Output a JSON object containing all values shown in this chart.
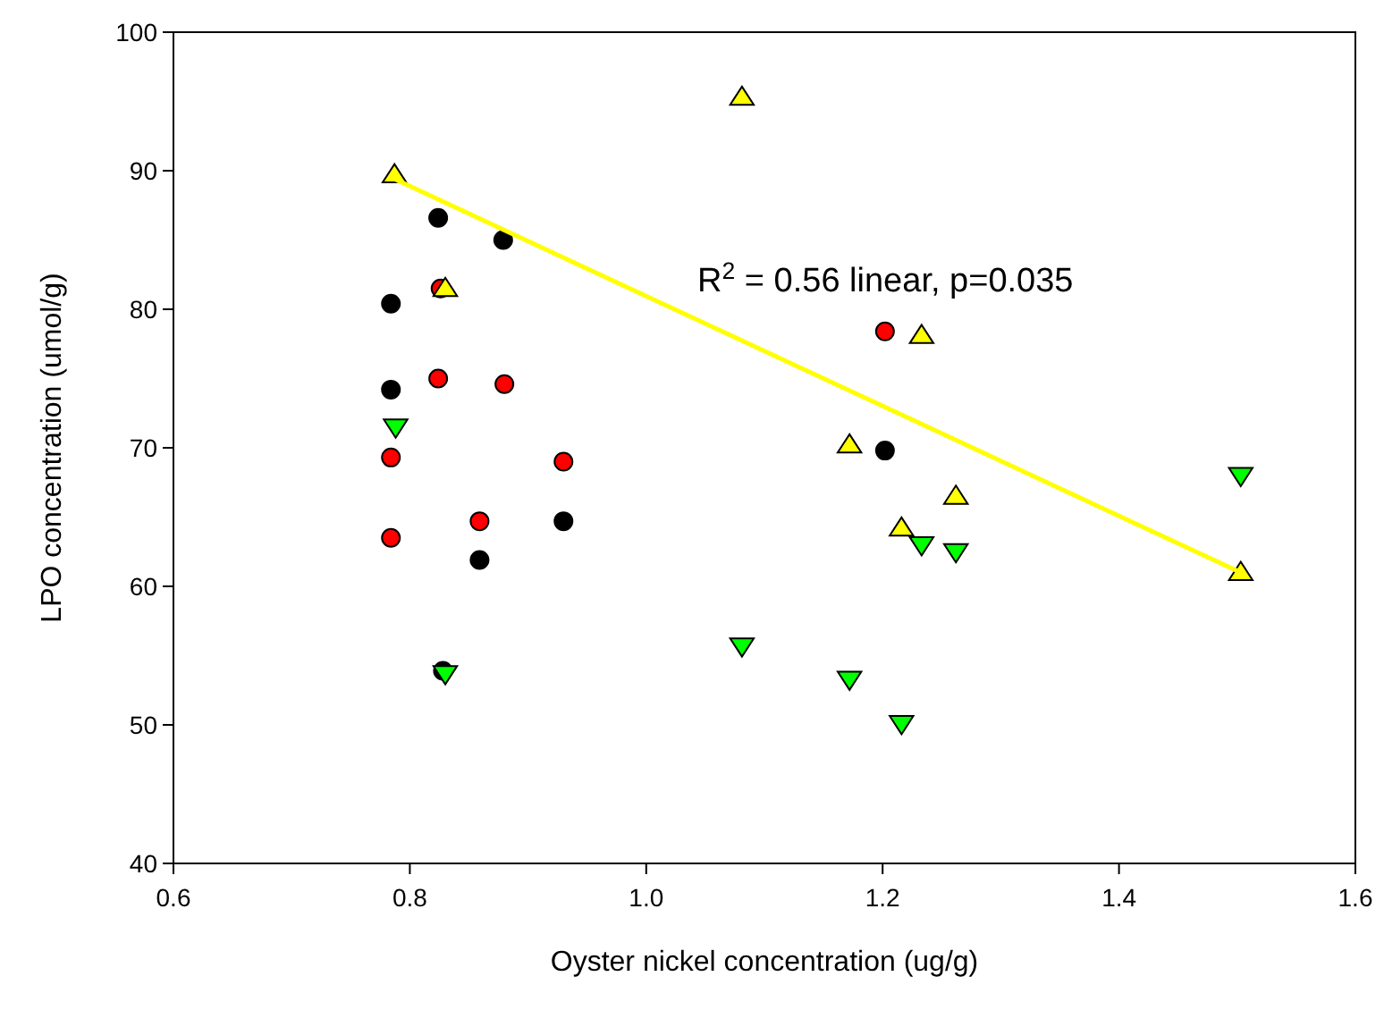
{
  "chart_data": {
    "type": "scatter",
    "xlabel": "Oyster nickel concentration (ug/g)",
    "ylabel": "LPO concentration (umol/g)",
    "xlim": [
      0.6,
      1.6
    ],
    "xticks": [
      {
        "value": 0.6,
        "label": "0.6"
      },
      {
        "value": 0.8,
        "label": "0.8"
      },
      {
        "value": 1.0,
        "label": "1.0"
      },
      {
        "value": 1.2,
        "label": "1.2"
      },
      {
        "value": 1.4,
        "label": "1.4"
      },
      {
        "value": 1.6,
        "label": "1.6"
      }
    ],
    "ylim": [
      40,
      100
    ],
    "yticks": [
      40,
      50,
      60,
      70,
      80,
      90,
      100
    ],
    "grid": false,
    "annotations": [
      "R$^{2}$ = 0.56 linear, p=0.035"
    ],
    "series": [
      {
        "color": "#000000",
        "marker": "circle",
        "x": [
          0.824,
          0.879,
          0.784,
          0.784,
          0.859,
          0.93,
          0.828,
          1.202
        ],
        "values": [
          86.6,
          85.0,
          80.4,
          74.2,
          61.9,
          64.7,
          53.9,
          69.8
        ]
      },
      {
        "color": "#ff0000",
        "marker": "circle",
        "x": [
          0.826,
          0.824,
          0.88,
          0.784,
          0.93,
          0.784,
          0.859,
          1.202
        ],
        "values": [
          81.5,
          75.0,
          74.6,
          69.3,
          69.0,
          63.5,
          64.7,
          78.4
        ]
      },
      {
        "color": "#ffff00",
        "marker": "triangle",
        "x": [
          0.787,
          0.83,
          1.081,
          1.233,
          1.172,
          1.262,
          1.216,
          1.503
        ],
        "values": [
          89.7,
          81.5,
          95.3,
          78.1,
          70.2,
          66.5,
          64.2,
          61.0
        ]
      },
      {
        "color": "#00ff00",
        "marker": "triangle-down",
        "x": [
          0.788,
          0.83,
          1.503,
          1.233,
          1.262,
          1.081,
          1.172,
          1.216
        ],
        "values": [
          71.5,
          53.7,
          68.0,
          63.0,
          62.5,
          55.7,
          53.3,
          50.1
        ]
      },
      {
        "type": "line",
        "color": "#ffff00",
        "marker": "none",
        "line_style": "solid",
        "x": [
          0.787,
          1.503
        ],
        "values": [
          89.4,
          61.0
        ]
      }
    ]
  }
}
